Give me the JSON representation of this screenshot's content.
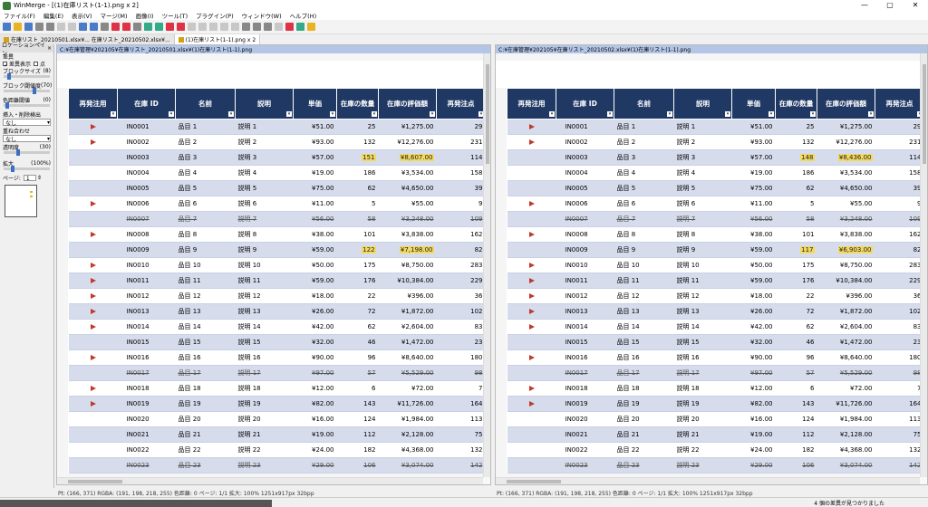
{
  "window": {
    "title": "WinMerge - [(1)在庫リスト(1-1).png x 2]",
    "controls": [
      "—",
      "▢",
      "✕"
    ]
  },
  "menu": [
    "ファイル(F)",
    "編集(E)",
    "表示(V)",
    "マージ(M)",
    "画像(I)",
    "ツール(T)",
    "プラグイン(P)",
    "ウィンドウ(W)",
    "ヘルプ(H)"
  ],
  "toolbar_colors": [
    "#4a7ac8",
    "#e8b423",
    "#4a7ac8",
    "#888",
    "#888",
    "#c8c8c8",
    "#c8c8c8",
    "#4a7ac8",
    "#4a7ac8",
    "#888",
    "#d34",
    "#d34",
    "#888",
    "#3a8",
    "#3a8",
    "#d34",
    "#d34",
    "#c8c8c8",
    "#c8c8c8",
    "#c8c8c8",
    "#c8c8c8",
    "#c8c8c8",
    "#888",
    "#888",
    "#888",
    "#c8c8c8",
    "#d34",
    "#3a8",
    "#e8b423"
  ],
  "tabs": [
    {
      "label": "在庫リスト_20210501.xlsx¥... 在庫リスト_20210502.xlsx¥...",
      "active": false
    },
    {
      "label": "(1)在庫リスト(1-1).png x 2",
      "active": true
    }
  ],
  "location_pane": {
    "title": "ロケーションペイン",
    "close": "×",
    "diff_label": "差異",
    "show_diff": "差異表示",
    "point": "点",
    "block_size": "ブロックサイズ",
    "block_size_val": "(8)",
    "block_threshold": "ブロック閾値度",
    "block_threshold_val": "(70)",
    "color_dist": "色距離閾値",
    "color_dist_val": "(0)",
    "insert_detect": "挿入・削除検出",
    "insert_val": "なし",
    "overlay": "重ね合わせ",
    "overlay_val": "なし",
    "alpha": "透明度",
    "alpha_val": "(30)",
    "zoom": "拡大",
    "zoom_val": "(100%)",
    "page": "ページ:",
    "page_val": "1"
  },
  "left_pane": {
    "path": "C:¥在庫管理¥202105¥在庫リスト_20210501.xlsx¥(1)在庫リスト(1-1).png",
    "status": "Pt: (166, 371)  RGBA: (191, 198, 218, 255)  色距離: 0  ページ: 1/1  拡大: 100%  1251x917px  32bpp"
  },
  "right_pane": {
    "path": "C:¥在庫管理¥202105¥在庫リスト_20210502.xlsx¥(1)在庫リスト(1-1).png",
    "status": "Pt: (166, 371)  RGBA: (191, 198, 218, 255)  色距離: 0  ページ: 1/1  拡大: 100%  1251x917px  32bpp"
  },
  "found_msg": "4 個の差異が見つかりました",
  "table_headers": [
    "再発注用",
    "在庫 ID",
    "名前",
    "説明",
    "単価",
    "在庫の数量",
    "在庫の評価額",
    "再発注点"
  ],
  "left_rows": [
    {
      "flag": true,
      "id": "IN0001",
      "name": "品目 1",
      "desc": "説明 1",
      "price": "¥51.00",
      "qty": "25",
      "value": "¥1,275.00",
      "reorder": "29",
      "strike": false,
      "hl": false
    },
    {
      "flag": true,
      "id": "IN0002",
      "name": "品目 2",
      "desc": "説明 2",
      "price": "¥93.00",
      "qty": "132",
      "value": "¥12,276.00",
      "reorder": "231",
      "strike": false,
      "hl": false
    },
    {
      "flag": false,
      "id": "IN0003",
      "name": "品目 3",
      "desc": "説明 3",
      "price": "¥57.00",
      "qty": "151",
      "value": "¥8,607.00",
      "reorder": "114",
      "strike": false,
      "hl": true
    },
    {
      "flag": false,
      "id": "IN0004",
      "name": "品目 4",
      "desc": "説明 4",
      "price": "¥19.00",
      "qty": "186",
      "value": "¥3,534.00",
      "reorder": "158",
      "strike": false,
      "hl": false
    },
    {
      "flag": false,
      "id": "IN0005",
      "name": "品目 5",
      "desc": "説明 5",
      "price": "¥75.00",
      "qty": "62",
      "value": "¥4,650.00",
      "reorder": "39",
      "strike": false,
      "hl": false
    },
    {
      "flag": true,
      "id": "IN0006",
      "name": "品目 6",
      "desc": "説明 6",
      "price": "¥11.00",
      "qty": "5",
      "value": "¥55.00",
      "reorder": "9",
      "strike": false,
      "hl": false
    },
    {
      "flag": false,
      "id": "IN0007",
      "name": "品目 7",
      "desc": "説明 7",
      "price": "¥56.00",
      "qty": "58",
      "value": "¥3,248.00",
      "reorder": "109",
      "strike": true,
      "hl": false
    },
    {
      "flag": true,
      "id": "IN0008",
      "name": "品目 8",
      "desc": "説明 8",
      "price": "¥38.00",
      "qty": "101",
      "value": "¥3,838.00",
      "reorder": "162",
      "strike": false,
      "hl": false
    },
    {
      "flag": false,
      "id": "IN0009",
      "name": "品目 9",
      "desc": "説明 9",
      "price": "¥59.00",
      "qty": "122",
      "value": "¥7,198.00",
      "reorder": "82",
      "strike": false,
      "hl": true
    },
    {
      "flag": true,
      "id": "IN0010",
      "name": "品目 10",
      "desc": "説明 10",
      "price": "¥50.00",
      "qty": "175",
      "value": "¥8,750.00",
      "reorder": "283",
      "strike": false,
      "hl": false
    },
    {
      "flag": true,
      "id": "IN0011",
      "name": "品目 11",
      "desc": "説明 11",
      "price": "¥59.00",
      "qty": "176",
      "value": "¥10,384.00",
      "reorder": "229",
      "strike": false,
      "hl": false
    },
    {
      "flag": true,
      "id": "IN0012",
      "name": "品目 12",
      "desc": "説明 12",
      "price": "¥18.00",
      "qty": "22",
      "value": "¥396.00",
      "reorder": "36",
      "strike": false,
      "hl": false
    },
    {
      "flag": true,
      "id": "IN0013",
      "name": "品目 13",
      "desc": "説明 13",
      "price": "¥26.00",
      "qty": "72",
      "value": "¥1,872.00",
      "reorder": "102",
      "strike": false,
      "hl": false
    },
    {
      "flag": true,
      "id": "IN0014",
      "name": "品目 14",
      "desc": "説明 14",
      "price": "¥42.00",
      "qty": "62",
      "value": "¥2,604.00",
      "reorder": "83",
      "strike": false,
      "hl": false
    },
    {
      "flag": false,
      "id": "IN0015",
      "name": "品目 15",
      "desc": "説明 15",
      "price": "¥32.00",
      "qty": "46",
      "value": "¥1,472.00",
      "reorder": "23",
      "strike": false,
      "hl": false
    },
    {
      "flag": true,
      "id": "IN0016",
      "name": "品目 16",
      "desc": "説明 16",
      "price": "¥90.00",
      "qty": "96",
      "value": "¥8,640.00",
      "reorder": "180",
      "strike": false,
      "hl": false
    },
    {
      "flag": false,
      "id": "IN0017",
      "name": "品目 17",
      "desc": "説明 17",
      "price": "¥97.00",
      "qty": "57",
      "value": "¥5,529.00",
      "reorder": "98",
      "strike": true,
      "hl": false
    },
    {
      "flag": true,
      "id": "IN0018",
      "name": "品目 18",
      "desc": "説明 18",
      "price": "¥12.00",
      "qty": "6",
      "value": "¥72.00",
      "reorder": "7",
      "strike": false,
      "hl": false
    },
    {
      "flag": true,
      "id": "IN0019",
      "name": "品目 19",
      "desc": "説明 19",
      "price": "¥82.00",
      "qty": "143",
      "value": "¥11,726.00",
      "reorder": "164",
      "strike": false,
      "hl": false
    },
    {
      "flag": false,
      "id": "IN0020",
      "name": "品目 20",
      "desc": "説明 20",
      "price": "¥16.00",
      "qty": "124",
      "value": "¥1,984.00",
      "reorder": "113",
      "strike": false,
      "hl": false
    },
    {
      "flag": false,
      "id": "IN0021",
      "name": "品目 21",
      "desc": "説明 21",
      "price": "¥19.00",
      "qty": "112",
      "value": "¥2,128.00",
      "reorder": "75",
      "strike": false,
      "hl": false
    },
    {
      "flag": false,
      "id": "IN0022",
      "name": "品目 22",
      "desc": "説明 22",
      "price": "¥24.00",
      "qty": "182",
      "value": "¥4,368.00",
      "reorder": "132",
      "strike": false,
      "hl": false
    },
    {
      "flag": false,
      "id": "IN0023",
      "name": "品目 23",
      "desc": "説明 23",
      "price": "¥29.00",
      "qty": "106",
      "value": "¥3,074.00",
      "reorder": "142",
      "strike": true,
      "hl": false
    }
  ],
  "right_rows": [
    {
      "flag": true,
      "id": "IN0001",
      "name": "品目 1",
      "desc": "説明 1",
      "price": "¥51.00",
      "qty": "25",
      "value": "¥1,275.00",
      "reorder": "29",
      "strike": false,
      "hl": false
    },
    {
      "flag": true,
      "id": "IN0002",
      "name": "品目 2",
      "desc": "説明 2",
      "price": "¥93.00",
      "qty": "132",
      "value": "¥12,276.00",
      "reorder": "231",
      "strike": false,
      "hl": false
    },
    {
      "flag": false,
      "id": "IN0003",
      "name": "品目 3",
      "desc": "説明 3",
      "price": "¥57.00",
      "qty": "148",
      "value": "¥8,436.00",
      "reorder": "114",
      "strike": false,
      "hl": true
    },
    {
      "flag": false,
      "id": "IN0004",
      "name": "品目 4",
      "desc": "説明 4",
      "price": "¥19.00",
      "qty": "186",
      "value": "¥3,534.00",
      "reorder": "158",
      "strike": false,
      "hl": false
    },
    {
      "flag": false,
      "id": "IN0005",
      "name": "品目 5",
      "desc": "説明 5",
      "price": "¥75.00",
      "qty": "62",
      "value": "¥4,650.00",
      "reorder": "39",
      "strike": false,
      "hl": false
    },
    {
      "flag": true,
      "id": "IN0006",
      "name": "品目 6",
      "desc": "説明 6",
      "price": "¥11.00",
      "qty": "5",
      "value": "¥55.00",
      "reorder": "9",
      "strike": false,
      "hl": false
    },
    {
      "flag": false,
      "id": "IN0007",
      "name": "品目 7",
      "desc": "説明 7",
      "price": "¥56.00",
      "qty": "58",
      "value": "¥3,248.00",
      "reorder": "109",
      "strike": true,
      "hl": false
    },
    {
      "flag": true,
      "id": "IN0008",
      "name": "品目 8",
      "desc": "説明 8",
      "price": "¥38.00",
      "qty": "101",
      "value": "¥3,838.00",
      "reorder": "162",
      "strike": false,
      "hl": false
    },
    {
      "flag": false,
      "id": "IN0009",
      "name": "品目 9",
      "desc": "説明 9",
      "price": "¥59.00",
      "qty": "117",
      "value": "¥6,903.00",
      "reorder": "82",
      "strike": false,
      "hl": true
    },
    {
      "flag": true,
      "id": "IN0010",
      "name": "品目 10",
      "desc": "説明 10",
      "price": "¥50.00",
      "qty": "175",
      "value": "¥8,750.00",
      "reorder": "283",
      "strike": false,
      "hl": false
    },
    {
      "flag": true,
      "id": "IN0011",
      "name": "品目 11",
      "desc": "説明 11",
      "price": "¥59.00",
      "qty": "176",
      "value": "¥10,384.00",
      "reorder": "229",
      "strike": false,
      "hl": false
    },
    {
      "flag": true,
      "id": "IN0012",
      "name": "品目 12",
      "desc": "説明 12",
      "price": "¥18.00",
      "qty": "22",
      "value": "¥396.00",
      "reorder": "36",
      "strike": false,
      "hl": false
    },
    {
      "flag": true,
      "id": "IN0013",
      "name": "品目 13",
      "desc": "説明 13",
      "price": "¥26.00",
      "qty": "72",
      "value": "¥1,872.00",
      "reorder": "102",
      "strike": false,
      "hl": false
    },
    {
      "flag": true,
      "id": "IN0014",
      "name": "品目 14",
      "desc": "説明 14",
      "price": "¥42.00",
      "qty": "62",
      "value": "¥2,604.00",
      "reorder": "83",
      "strike": false,
      "hl": false
    },
    {
      "flag": false,
      "id": "IN0015",
      "name": "品目 15",
      "desc": "説明 15",
      "price": "¥32.00",
      "qty": "46",
      "value": "¥1,472.00",
      "reorder": "23",
      "strike": false,
      "hl": false
    },
    {
      "flag": true,
      "id": "IN0016",
      "name": "品目 16",
      "desc": "説明 16",
      "price": "¥90.00",
      "qty": "96",
      "value": "¥8,640.00",
      "reorder": "180",
      "strike": false,
      "hl": false
    },
    {
      "flag": false,
      "id": "IN0017",
      "name": "品目 17",
      "desc": "説明 17",
      "price": "¥97.00",
      "qty": "57",
      "value": "¥5,529.00",
      "reorder": "98",
      "strike": true,
      "hl": false
    },
    {
      "flag": true,
      "id": "IN0018",
      "name": "品目 18",
      "desc": "説明 18",
      "price": "¥12.00",
      "qty": "6",
      "value": "¥72.00",
      "reorder": "7",
      "strike": false,
      "hl": false
    },
    {
      "flag": true,
      "id": "IN0019",
      "name": "品目 19",
      "desc": "説明 19",
      "price": "¥82.00",
      "qty": "143",
      "value": "¥11,726.00",
      "reorder": "164",
      "strike": false,
      "hl": false
    },
    {
      "flag": false,
      "id": "IN0020",
      "name": "品目 20",
      "desc": "説明 20",
      "price": "¥16.00",
      "qty": "124",
      "value": "¥1,984.00",
      "reorder": "113",
      "strike": false,
      "hl": false
    },
    {
      "flag": false,
      "id": "IN0021",
      "name": "品目 21",
      "desc": "説明 21",
      "price": "¥19.00",
      "qty": "112",
      "value": "¥2,128.00",
      "reorder": "75",
      "strike": false,
      "hl": false
    },
    {
      "flag": false,
      "id": "IN0022",
      "name": "品目 22",
      "desc": "説明 22",
      "price": "¥24.00",
      "qty": "182",
      "value": "¥4,368.00",
      "reorder": "132",
      "strike": false,
      "hl": false
    },
    {
      "flag": false,
      "id": "IN0023",
      "name": "品目 23",
      "desc": "説明 23",
      "price": "¥29.00",
      "qty": "106",
      "value": "¥3,074.00",
      "reorder": "142",
      "strike": true,
      "hl": false
    }
  ]
}
